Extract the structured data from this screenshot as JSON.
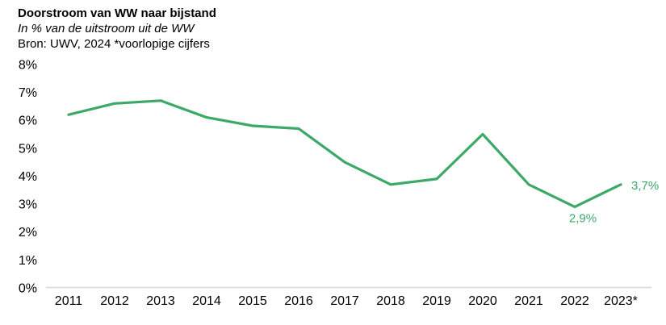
{
  "header": {
    "title": "Doorstroom van WW naar bijstand",
    "subtitle": "In % van de uitstroom uit de WW",
    "source": "Bron: UWV, 2024 *voorlopige cijfers"
  },
  "chart_data": {
    "type": "line",
    "title": "Doorstroom van WW naar bijstand",
    "subtitle": "In % van de uitstroom uit de WW",
    "source": "Bron: UWV, 2024 *voorlopige cijfers",
    "categories": [
      "2011",
      "2012",
      "2013",
      "2014",
      "2015",
      "2016",
      "2017",
      "2018",
      "2019",
      "2020",
      "2021",
      "2022",
      "2023*"
    ],
    "values": [
      6.2,
      6.6,
      6.7,
      6.1,
      5.8,
      5.7,
      4.5,
      3.7,
      3.9,
      5.5,
      3.7,
      2.9,
      3.7
    ],
    "xlabel": "",
    "ylabel": "",
    "ylim": [
      0,
      8
    ],
    "ytick_labels": [
      "0%",
      "1%",
      "2%",
      "3%",
      "4%",
      "5%",
      "6%",
      "7%",
      "8%"
    ],
    "grid": false,
    "legend_position": "none",
    "line_color": "#3CA967",
    "axis_line_color": "#D9D9D9",
    "annotations": [
      {
        "category": "2022",
        "index": 11,
        "text": "2,9%",
        "position": "below"
      },
      {
        "category": "2023*",
        "index": 12,
        "text": "3,7%",
        "position": "right"
      }
    ]
  }
}
